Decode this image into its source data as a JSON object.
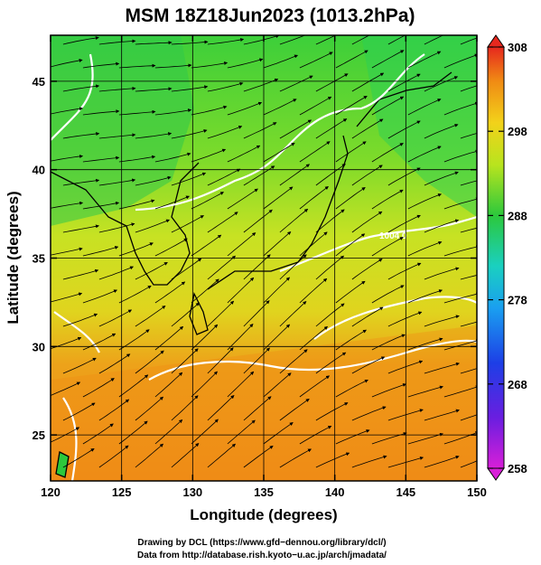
{
  "title": "MSM 18Z18Jun2023 (1013.2hPa)",
  "xaxis": {
    "label": "Longitude (degrees)",
    "range": [
      120,
      150
    ],
    "ticks": [
      120,
      125,
      130,
      135,
      140,
      145,
      150
    ]
  },
  "yaxis": {
    "label": "Latitude  (degrees)",
    "range": [
      22.4,
      47.6
    ],
    "ticks": [
      25,
      30,
      35,
      40,
      45
    ]
  },
  "colorbar": {
    "range": [
      258,
      308
    ],
    "ticks": [
      258,
      268,
      278,
      288,
      298,
      308
    ],
    "colors": [
      "#d81fd8",
      "#3a1be0",
      "#1a7cf0",
      "#19d0c8",
      "#2cc83c",
      "#b8e41e",
      "#f2d21a",
      "#f08a14",
      "#e6281e"
    ]
  },
  "contour_labels": [
    {
      "text": "1004.0",
      "lon": 143.5,
      "lat": 36.9
    }
  ],
  "footer": {
    "line1": "Drawing by DCL (https://www.gfd−dennou.org/library/dcl/)",
    "line2": "Data from http://database.rish.kyoto−u.ac.jp/arch/jmadata/"
  }
}
